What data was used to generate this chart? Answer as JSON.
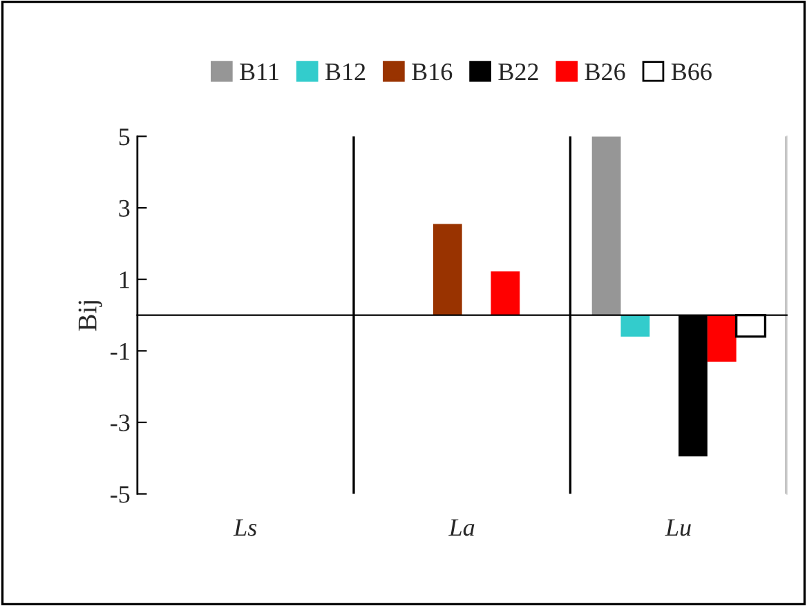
{
  "chart_data": {
    "type": "bar",
    "ylabel": "Bij",
    "categories": [
      "Ls",
      "La",
      "Lu"
    ],
    "series": [
      {
        "name": "B11",
        "color": "#969696",
        "values": [
          null,
          null,
          5.0
        ]
      },
      {
        "name": "B12",
        "color": "#33cccc",
        "values": [
          null,
          null,
          -0.6
        ]
      },
      {
        "name": "B16",
        "color": "#993300",
        "values": [
          null,
          2.55,
          null
        ]
      },
      {
        "name": "B22",
        "color": "#000000",
        "values": [
          null,
          null,
          -3.95
        ]
      },
      {
        "name": "B26",
        "color": "#ff0000",
        "values": [
          null,
          1.22,
          -1.3
        ]
      },
      {
        "name": "B66",
        "color": "#ffffff",
        "values": [
          null,
          null,
          -0.6
        ]
      }
    ],
    "ylim": [
      -5,
      5
    ],
    "yticks": [
      -5,
      -3,
      -1,
      1,
      3,
      5
    ],
    "grid": "x",
    "legend": "top"
  }
}
